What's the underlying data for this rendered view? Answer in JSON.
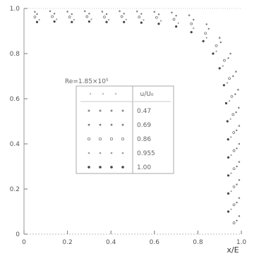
{
  "chart_data": {
    "type": "scatter",
    "xlabel": "x/E",
    "xlim": [
      0,
      1.0
    ],
    "ylim": [
      0,
      1.0
    ],
    "x_ticks": [
      "0",
      "0.2",
      "0.4",
      "0.6",
      "0.8",
      "1.0"
    ],
    "y_ticks": [
      "0",
      "0.2",
      "0.4",
      "0.6",
      "0.8",
      "1.0"
    ],
    "annotation": "Re=1.85×10⁵",
    "legend": {
      "placement": "center",
      "header": "u/U₀",
      "levels": [
        "0.47",
        "0.69",
        "0.86",
        "0.955",
        "1.00"
      ]
    },
    "series": [
      {
        "label": "0.47",
        "points": [
          [
            0.05,
            0.985
          ],
          [
            0.12,
            0.988
          ],
          [
            0.2,
            0.986
          ],
          [
            0.28,
            0.988
          ],
          [
            0.36,
            0.986
          ],
          [
            0.44,
            0.988
          ],
          [
            0.52,
            0.987
          ],
          [
            0.6,
            0.985
          ],
          [
            0.68,
            0.982
          ],
          [
            0.76,
            0.97
          ],
          [
            0.84,
            0.93
          ],
          [
            0.9,
            0.87
          ],
          [
            0.95,
            0.8
          ],
          [
            0.975,
            0.72
          ],
          [
            0.985,
            0.64
          ],
          [
            0.988,
            0.56
          ],
          [
            0.99,
            0.48
          ],
          [
            0.99,
            0.4
          ],
          [
            0.99,
            0.32
          ],
          [
            0.99,
            0.24
          ],
          [
            0.99,
            0.16
          ],
          [
            0.99,
            0.08
          ]
        ]
      },
      {
        "label": "0.69",
        "points": [
          [
            0.06,
            0.975
          ],
          [
            0.14,
            0.977
          ],
          [
            0.22,
            0.975
          ],
          [
            0.3,
            0.977
          ],
          [
            0.38,
            0.975
          ],
          [
            0.46,
            0.977
          ],
          [
            0.54,
            0.976
          ],
          [
            0.62,
            0.974
          ],
          [
            0.7,
            0.968
          ],
          [
            0.78,
            0.95
          ],
          [
            0.85,
            0.91
          ],
          [
            0.905,
            0.85
          ],
          [
            0.94,
            0.78
          ],
          [
            0.962,
            0.7
          ],
          [
            0.972,
            0.62
          ],
          [
            0.976,
            0.54
          ],
          [
            0.978,
            0.46
          ],
          [
            0.979,
            0.38
          ],
          [
            0.979,
            0.3
          ],
          [
            0.979,
            0.22
          ],
          [
            0.979,
            0.14
          ],
          [
            0.979,
            0.06
          ]
        ]
      },
      {
        "label": "0.86",
        "points": [
          [
            0.05,
            0.962
          ],
          [
            0.13,
            0.964
          ],
          [
            0.21,
            0.962
          ],
          [
            0.29,
            0.964
          ],
          [
            0.37,
            0.962
          ],
          [
            0.45,
            0.964
          ],
          [
            0.53,
            0.962
          ],
          [
            0.61,
            0.96
          ],
          [
            0.69,
            0.952
          ],
          [
            0.77,
            0.932
          ],
          [
            0.835,
            0.89
          ],
          [
            0.885,
            0.835
          ],
          [
            0.922,
            0.77
          ],
          [
            0.945,
            0.69
          ],
          [
            0.956,
            0.61
          ],
          [
            0.962,
            0.53
          ],
          [
            0.965,
            0.45
          ],
          [
            0.966,
            0.37
          ],
          [
            0.966,
            0.29
          ],
          [
            0.966,
            0.21
          ],
          [
            0.966,
            0.13
          ],
          [
            0.966,
            0.05
          ]
        ]
      },
      {
        "label": "0.955",
        "points": [
          [
            0.07,
            0.95
          ],
          [
            0.15,
            0.952
          ],
          [
            0.23,
            0.95
          ],
          [
            0.31,
            0.952
          ],
          [
            0.39,
            0.95
          ],
          [
            0.47,
            0.951
          ],
          [
            0.55,
            0.949
          ],
          [
            0.63,
            0.945
          ],
          [
            0.71,
            0.935
          ],
          [
            0.78,
            0.912
          ],
          [
            0.84,
            0.87
          ],
          [
            0.885,
            0.81
          ],
          [
            0.915,
            0.745
          ],
          [
            0.935,
            0.67
          ],
          [
            0.945,
            0.59
          ],
          [
            0.95,
            0.51
          ],
          [
            0.952,
            0.43
          ],
          [
            0.953,
            0.35
          ],
          [
            0.953,
            0.27
          ],
          [
            0.953,
            0.19
          ],
          [
            0.953,
            0.11
          ]
        ]
      },
      {
        "label": "1.00",
        "points": [
          [
            0.06,
            0.94
          ],
          [
            0.14,
            0.942
          ],
          [
            0.22,
            0.94
          ],
          [
            0.3,
            0.942
          ],
          [
            0.38,
            0.94
          ],
          [
            0.46,
            0.94
          ],
          [
            0.54,
            0.937
          ],
          [
            0.62,
            0.932
          ],
          [
            0.7,
            0.92
          ],
          [
            0.77,
            0.895
          ],
          [
            0.825,
            0.855
          ],
          [
            0.87,
            0.8
          ],
          [
            0.9,
            0.735
          ],
          [
            0.92,
            0.66
          ],
          [
            0.93,
            0.58
          ],
          [
            0.936,
            0.5
          ],
          [
            0.939,
            0.42
          ],
          [
            0.94,
            0.34
          ],
          [
            0.94,
            0.26
          ],
          [
            0.94,
            0.18
          ],
          [
            0.94,
            0.1
          ]
        ]
      }
    ]
  }
}
